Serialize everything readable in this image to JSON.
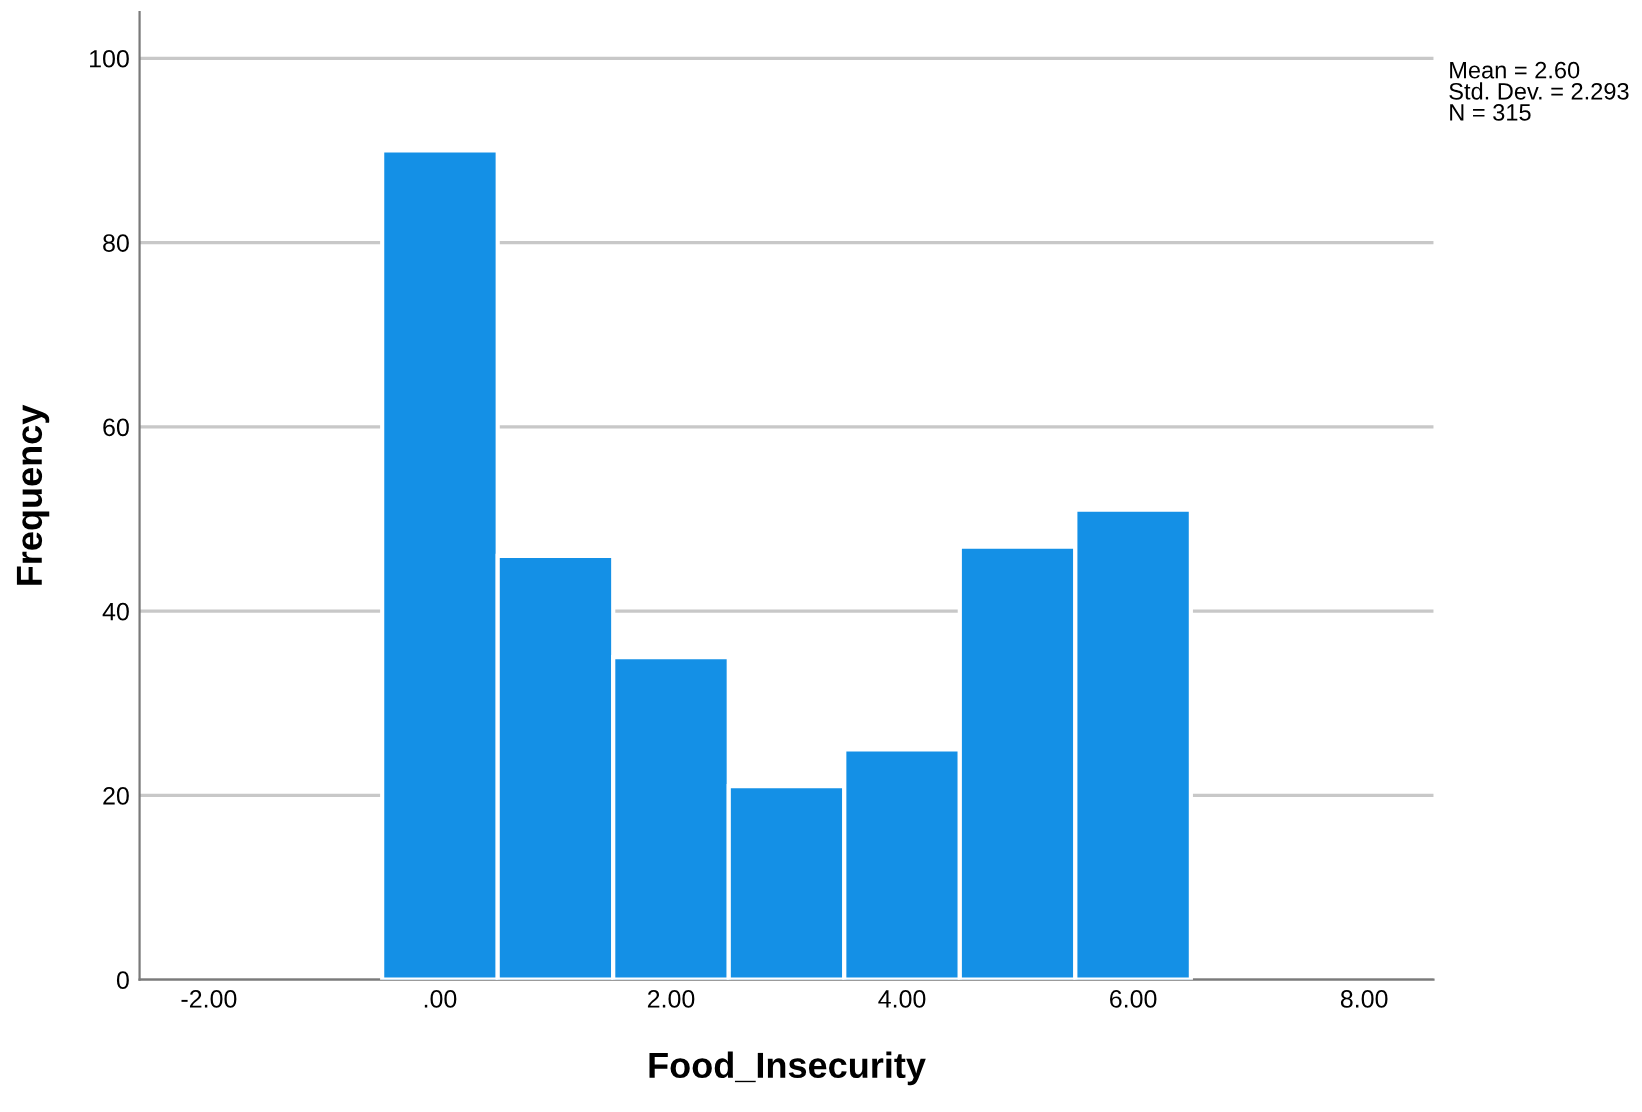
{
  "chart_data": {
    "type": "histogram",
    "xlabel": "Food_Insecurity",
    "ylabel": "Frequency",
    "bins": [
      -0.5,
      0.5,
      1.5,
      2.5,
      3.5,
      4.5,
      5.5,
      6.5
    ],
    "values": [
      90,
      46,
      35,
      21,
      25,
      47,
      51
    ],
    "color": "#1490e6",
    "xlim": [
      -2.6,
      8.6
    ],
    "ylim": [
      0,
      105
    ],
    "xticks": [
      {
        "value": -2,
        "label": "-2.00"
      },
      {
        "value": 0,
        "label": ".00"
      },
      {
        "value": 2,
        "label": "2.00"
      },
      {
        "value": 4,
        "label": "4.00"
      },
      {
        "value": 6,
        "label": "6.00"
      },
      {
        "value": 8,
        "label": "8.00"
      }
    ],
    "yticks": [
      0,
      20,
      40,
      60,
      80,
      100
    ],
    "grid": "y",
    "annotations": [
      "Mean = 2.60\nStd. Dev. = 2.293\nN = 315"
    ]
  }
}
